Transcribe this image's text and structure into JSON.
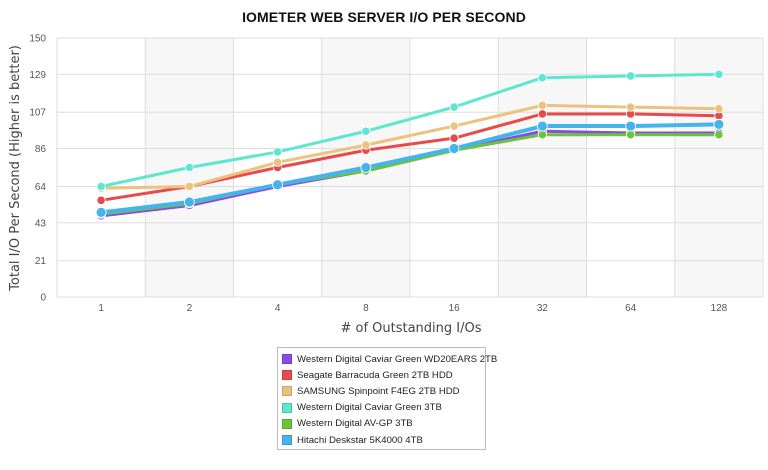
{
  "chart_data": {
    "type": "line",
    "title": "IOMETER WEB SERVER I/O PER SECOND",
    "xlabel": "# of Outstanding I/Os",
    "ylabel": "Total I/O Per Second (Higher is better)",
    "categories": [
      "1",
      "2",
      "4",
      "8",
      "16",
      "32",
      "64",
      "128"
    ],
    "y_ticks": [
      "0",
      "21",
      "43",
      "64",
      "86",
      "107",
      "129",
      "150"
    ],
    "ylim": [
      0,
      150
    ],
    "grid": true,
    "legend_position": "bottom-center",
    "series": [
      {
        "name": "Western Digital Caviar Green WD20EARS 2TB",
        "color": "#8b49e6",
        "values": [
          47,
          53,
          64,
          73,
          85,
          96,
          95,
          95
        ]
      },
      {
        "name": "Seagate Barracuda Green 2TB HDD",
        "color": "#e84a4a",
        "values": [
          56,
          64,
          75,
          85,
          92,
          106,
          106,
          105
        ]
      },
      {
        "name": "SAMSUNG Spinpoint F4EG 2TB HDD",
        "color": "#ecc27f",
        "values": [
          63,
          64,
          78,
          88,
          99,
          111,
          110,
          109
        ]
      },
      {
        "name": "Western Digital Caviar Green 3TB",
        "color": "#5de6d2",
        "values": [
          64,
          75,
          84,
          96,
          110,
          127,
          128,
          129
        ]
      },
      {
        "name": "Western Digital AV-GP 3TB",
        "color": "#6cc43a",
        "values": [
          48,
          54,
          65,
          73,
          85,
          94,
          94,
          94
        ]
      },
      {
        "name": "Hitachi Deskstar 5K4000 4TB",
        "color": "#45b4ec",
        "values": [
          49,
          55,
          65,
          75,
          86,
          99,
          99,
          100
        ]
      }
    ]
  }
}
